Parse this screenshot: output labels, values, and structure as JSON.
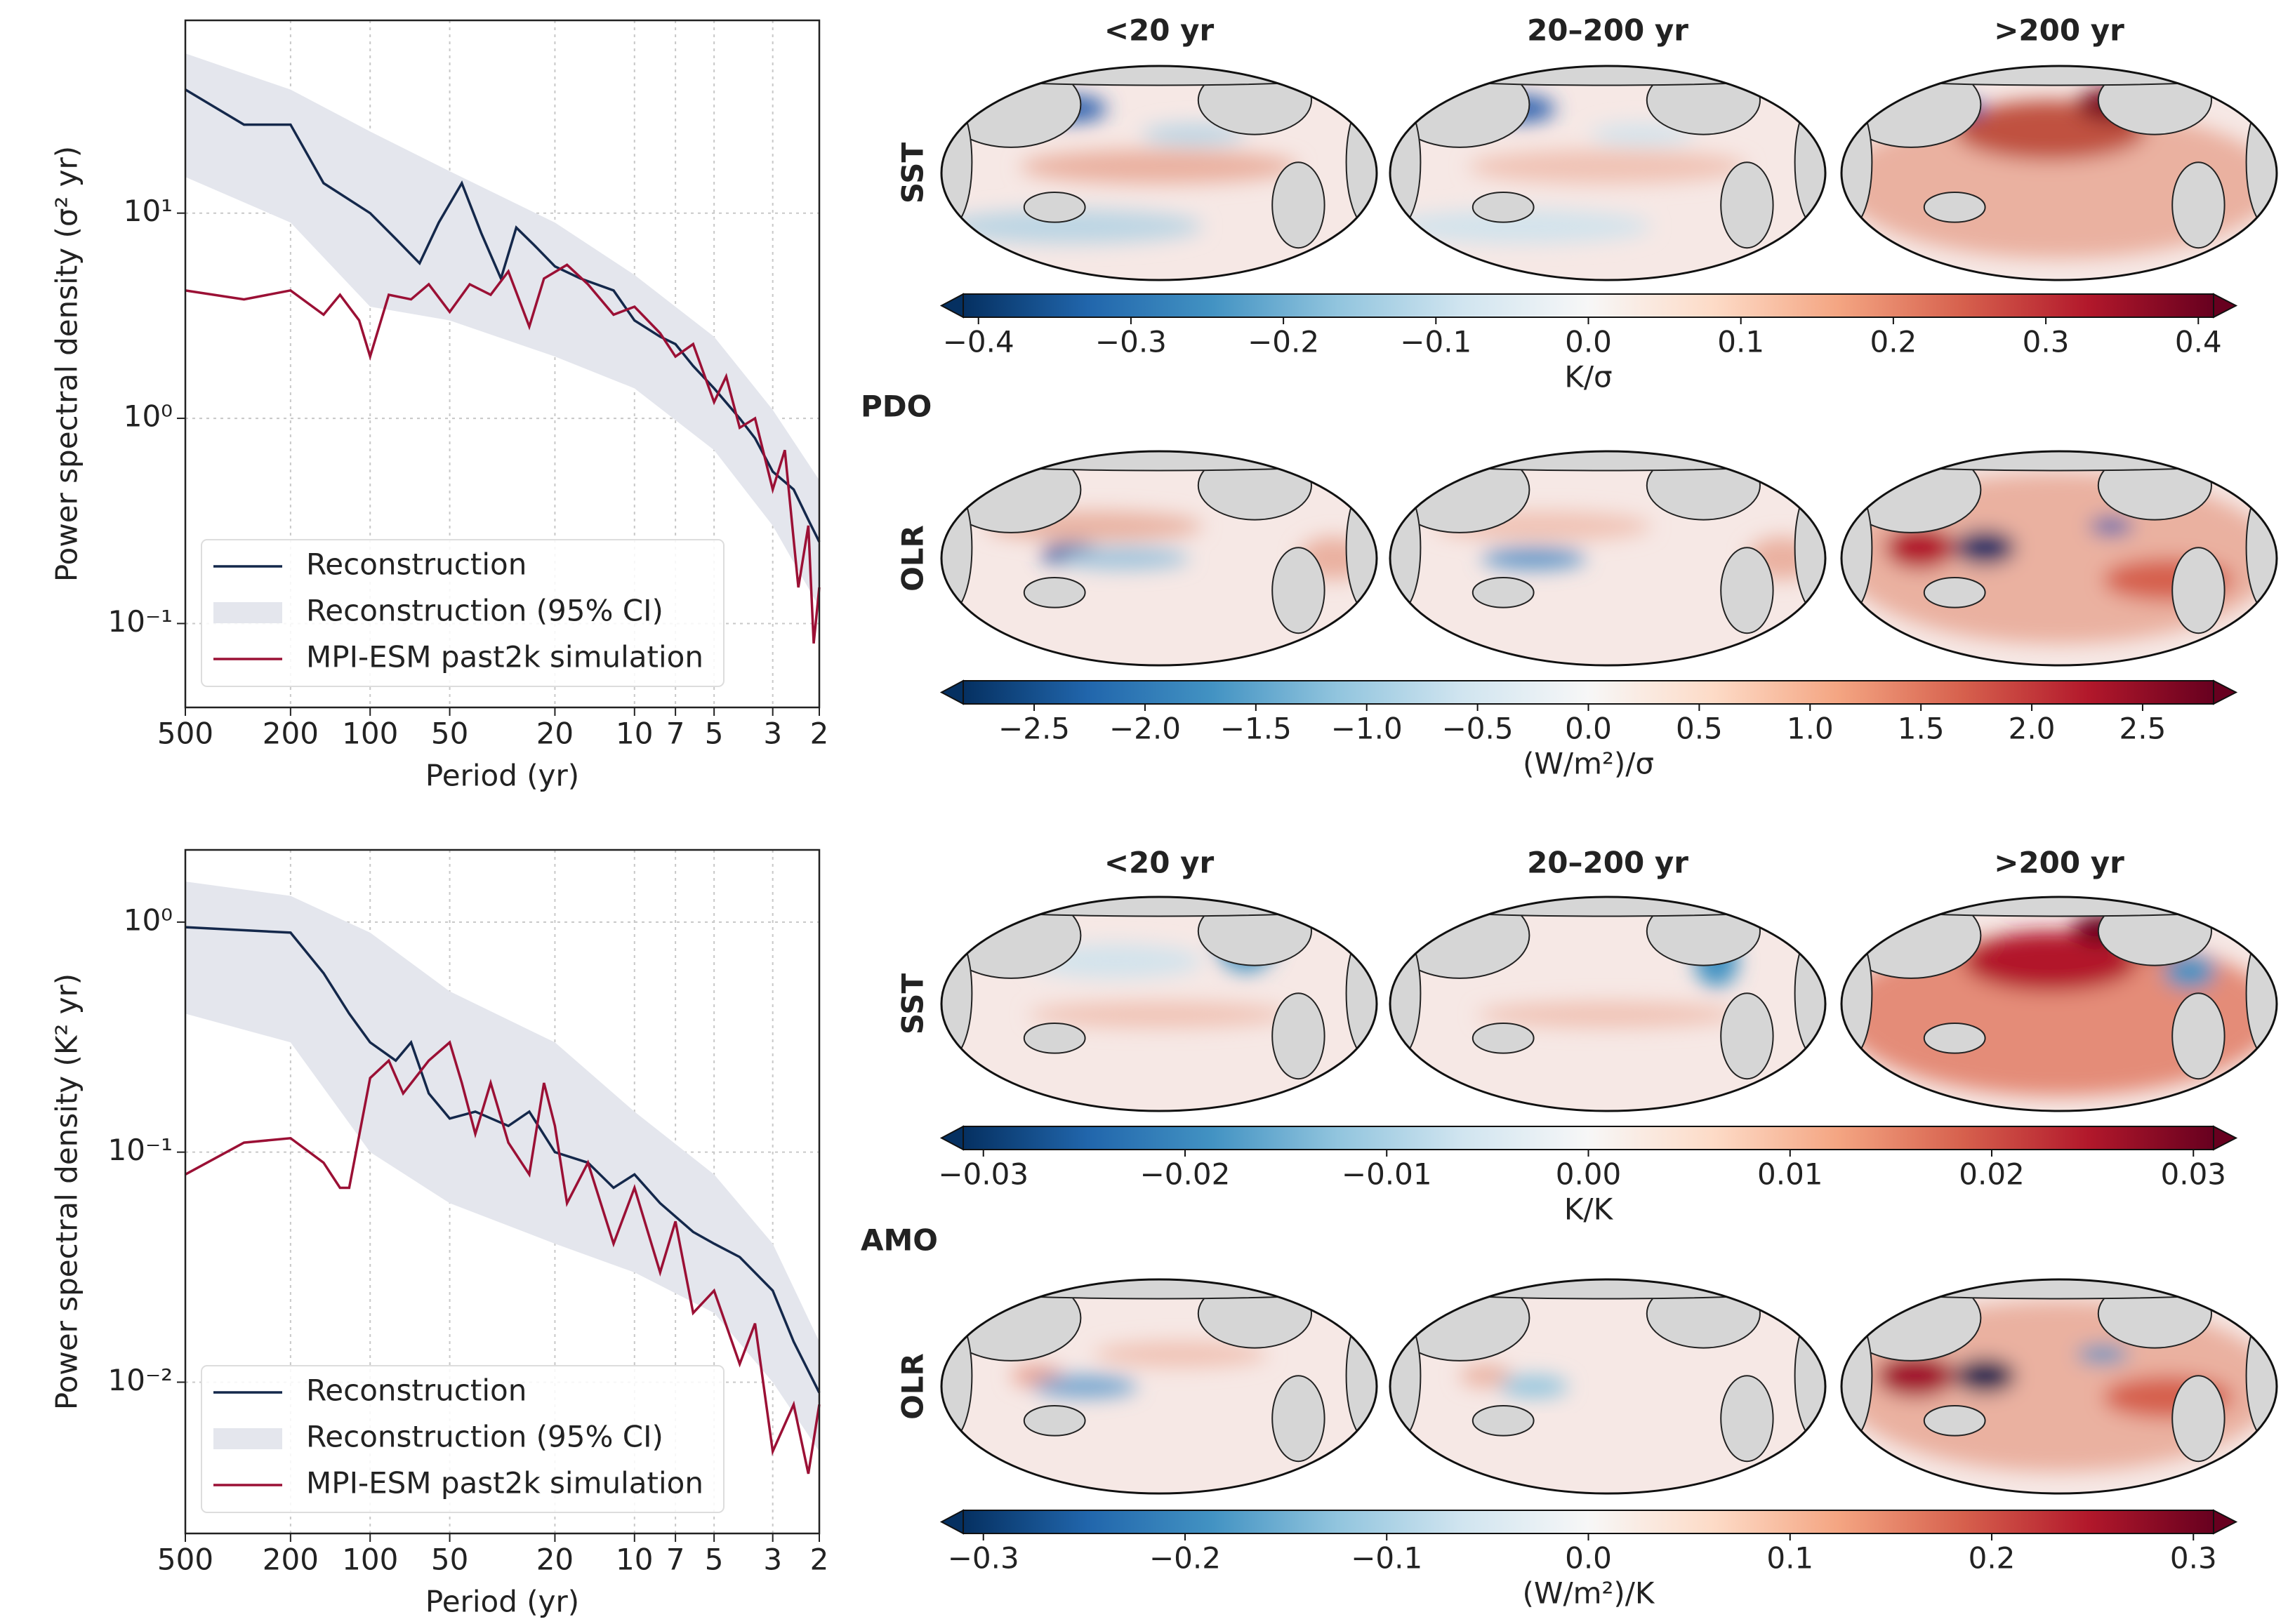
{
  "chart_data": [
    {
      "type": "line",
      "log_x": true,
      "log_y": true,
      "grid": true,
      "legend": "lower left",
      "xlabel": "Period (yr)",
      "ylabel": "Power spectral density (σ² yr)",
      "xlim": [
        500,
        2
      ],
      "xticks": [
        500,
        200,
        100,
        50,
        20,
        10,
        7,
        5,
        3,
        2
      ],
      "ylim": [
        0.039,
        87
      ],
      "yticks": [
        {
          "value": 10,
          "label": "10¹"
        },
        {
          "value": 1,
          "label": "10⁰"
        },
        {
          "value": 0.1,
          "label": "10⁻¹"
        }
      ],
      "series": [
        {
          "name": "Reconstruction (95% CI)",
          "color": "#e4e6ed",
          "x": [
            500,
            200,
            100,
            50,
            20,
            10,
            5,
            3,
            2
          ],
          "lower": [
            15,
            9,
            3.5,
            3,
            2,
            1.4,
            0.7,
            0.3,
            0.12
          ],
          "upper": [
            60,
            40,
            25,
            16,
            9,
            5,
            2.5,
            1.1,
            0.5
          ]
        },
        {
          "name": "Reconstruction",
          "color": "#14284b",
          "x": [
            500,
            300,
            200,
            150,
            100,
            80,
            65,
            55,
            45,
            38,
            32,
            28,
            24,
            20,
            16,
            12,
            10,
            8,
            7,
            6,
            5,
            4,
            3.5,
            3,
            2.5,
            2.2,
            2
          ],
          "values": [
            40,
            27,
            27,
            14,
            10,
            7.5,
            5.7,
            9,
            14,
            8,
            4.8,
            8.5,
            7,
            5.5,
            4.8,
            4.2,
            3,
            2.5,
            2.3,
            1.8,
            1.4,
            1.0,
            0.8,
            0.55,
            0.45,
            0.32,
            0.25
          ]
        },
        {
          "name": "MPI-ESM past2k simulation",
          "color": "#9b1035",
          "x": [
            500,
            300,
            200,
            150,
            130,
            110,
            100,
            85,
            70,
            60,
            50,
            42,
            35,
            30,
            25,
            22,
            18,
            15,
            12,
            10,
            8,
            7,
            6,
            5,
            4.5,
            4,
            3.5,
            3,
            2.7,
            2.4,
            2.2,
            2.1,
            2
          ],
          "values": [
            4.2,
            3.8,
            4.2,
            3.2,
            4,
            3,
            2,
            4,
            3.8,
            4.5,
            3.3,
            4.5,
            4,
            5.2,
            2.8,
            4.8,
            5.6,
            4.5,
            3.2,
            3.5,
            2.6,
            2,
            2.3,
            1.2,
            1.6,
            0.9,
            1.0,
            0.45,
            0.7,
            0.15,
            0.3,
            0.08,
            0.15
          ]
        }
      ]
    },
    {
      "type": "line",
      "log_x": true,
      "log_y": true,
      "grid": true,
      "legend": "lower left",
      "xlabel": "Period (yr)",
      "ylabel": "Power spectral density (K² yr)",
      "xlim": [
        500,
        2
      ],
      "xticks": [
        500,
        200,
        100,
        50,
        20,
        10,
        7,
        5,
        3,
        2
      ],
      "ylim": [
        0.0022,
        2.06
      ],
      "yticks": [
        {
          "value": 1,
          "label": "10⁰"
        },
        {
          "value": 0.1,
          "label": "10⁻¹"
        },
        {
          "value": 0.01,
          "label": "10⁻²"
        }
      ],
      "series": [
        {
          "name": "Reconstruction (95% CI)",
          "color": "#e4e6ed",
          "x": [
            500,
            200,
            100,
            50,
            20,
            10,
            5,
            3,
            2
          ],
          "lower": [
            0.4,
            0.3,
            0.1,
            0.06,
            0.04,
            0.03,
            0.02,
            0.01,
            0.005
          ],
          "upper": [
            1.5,
            1.3,
            0.9,
            0.5,
            0.3,
            0.15,
            0.08,
            0.04,
            0.015
          ]
        },
        {
          "name": "Reconstruction",
          "color": "#14284b",
          "x": [
            500,
            200,
            150,
            120,
            100,
            80,
            70,
            60,
            50,
            40,
            30,
            25,
            20,
            15,
            12,
            10,
            8,
            6,
            5,
            4,
            3,
            2.5,
            2
          ],
          "values": [
            0.95,
            0.9,
            0.6,
            0.4,
            0.3,
            0.25,
            0.3,
            0.18,
            0.14,
            0.15,
            0.13,
            0.15,
            0.1,
            0.09,
            0.07,
            0.08,
            0.06,
            0.045,
            0.04,
            0.035,
            0.025,
            0.015,
            0.009
          ]
        },
        {
          "name": "MPI-ESM past2k simulation",
          "color": "#9b1035",
          "x": [
            500,
            300,
            200,
            150,
            130,
            120,
            100,
            85,
            75,
            60,
            50,
            45,
            40,
            35,
            30,
            25,
            22,
            20,
            18,
            15,
            12,
            10,
            8,
            7,
            6,
            5,
            4,
            3.5,
            3,
            2.5,
            2.2,
            2
          ],
          "values": [
            0.08,
            0.11,
            0.115,
            0.09,
            0.07,
            0.07,
            0.21,
            0.25,
            0.18,
            0.25,
            0.3,
            0.2,
            0.12,
            0.2,
            0.11,
            0.08,
            0.2,
            0.13,
            0.06,
            0.09,
            0.04,
            0.07,
            0.03,
            0.05,
            0.02,
            0.025,
            0.012,
            0.018,
            0.005,
            0.008,
            0.004,
            0.008
          ]
        }
      ]
    }
  ],
  "colormap": [
    "#053061",
    "#2166ac",
    "#4393c3",
    "#92c5de",
    "#d1e5f0",
    "#f7f7f7",
    "#fddbc7",
    "#f4a582",
    "#d6604d",
    "#b2182b",
    "#67001f"
  ],
  "panels": [
    {
      "name": "PDO",
      "column_titles": [
        "<20 yr",
        "20–200 yr",
        ">200 yr"
      ],
      "rows": [
        {
          "label": "SST",
          "colorbar": {
            "vlim": [
              -0.41,
              0.41
            ],
            "label": "K/σ",
            "ticks": [
              {
                "value": -0.4,
                "label": "−0.4"
              },
              {
                "value": -0.3,
                "label": "−0.3"
              },
              {
                "value": -0.2,
                "label": "−0.2"
              },
              {
                "value": -0.1,
                "label": "−0.1"
              },
              {
                "value": 0,
                "label": "0.0"
              },
              0.1,
              0.2,
              0.3,
              0.4
            ]
          }
        },
        {
          "label": "OLR",
          "colorbar": {
            "vlim": [
              -2.82,
              2.82
            ],
            "label": "(W/m²)/σ",
            "ticks": [
              {
                "value": -2.5,
                "label": "−2.5"
              },
              {
                "value": -2,
                "label": "−2.0"
              },
              {
                "value": -1.5,
                "label": "−1.5"
              },
              {
                "value": -1,
                "label": "−1.0"
              },
              {
                "value": -0.5,
                "label": "−0.5"
              },
              {
                "value": 0,
                "label": "0.0"
              },
              0.5,
              {
                "value": 1,
                "label": "1.0"
              },
              1.5,
              {
                "value": 2,
                "label": "2.0"
              },
              2.5
            ]
          }
        }
      ]
    },
    {
      "name": "AMO",
      "column_titles": [
        "<20 yr",
        "20–200 yr",
        ">200 yr"
      ],
      "rows": [
        {
          "label": "SST",
          "colorbar": {
            "vlim": [
              -0.031,
              0.031
            ],
            "label": "K/K",
            "ticks": [
              {
                "value": -0.03,
                "label": "−0.03"
              },
              {
                "value": -0.02,
                "label": "−0.02"
              },
              {
                "value": -0.01,
                "label": "−0.01"
              },
              {
                "value": 0,
                "label": "0.00"
              },
              0.01,
              0.02,
              0.03
            ]
          }
        },
        {
          "label": "OLR",
          "colorbar": {
            "vlim": [
              -0.31,
              0.31
            ],
            "label": "(W/m²)/K",
            "ticks": [
              {
                "value": -0.3,
                "label": "−0.3"
              },
              {
                "value": -0.2,
                "label": "−0.2"
              },
              {
                "value": -0.1,
                "label": "−0.1"
              },
              {
                "value": 0,
                "label": "0.0"
              },
              0.1,
              0.2,
              0.3
            ]
          }
        }
      ]
    }
  ]
}
